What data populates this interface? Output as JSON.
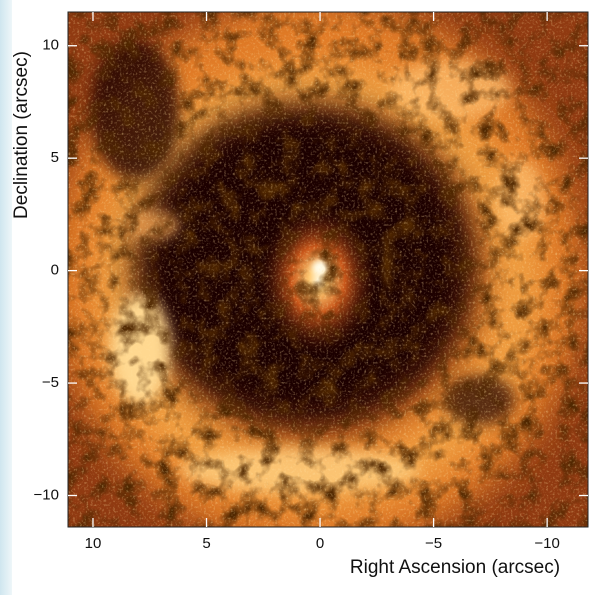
{
  "chart_data": {
    "type": "image",
    "xlabel": "Right Ascension (arcsec)",
    "ylabel": "Declination (arcsec)",
    "xlim": [
      11.1,
      -11.8
    ],
    "ylim": [
      -11.4,
      11.5
    ],
    "xticks": [
      10,
      5,
      0,
      {
        "value": -5,
        "label": "−5"
      },
      {
        "value": -10,
        "label": "−10"
      }
    ],
    "yticks": [
      {
        "value": -10,
        "label": "−10"
      },
      {
        "value": -5,
        "label": "−5"
      },
      0,
      5,
      10
    ]
  }
}
